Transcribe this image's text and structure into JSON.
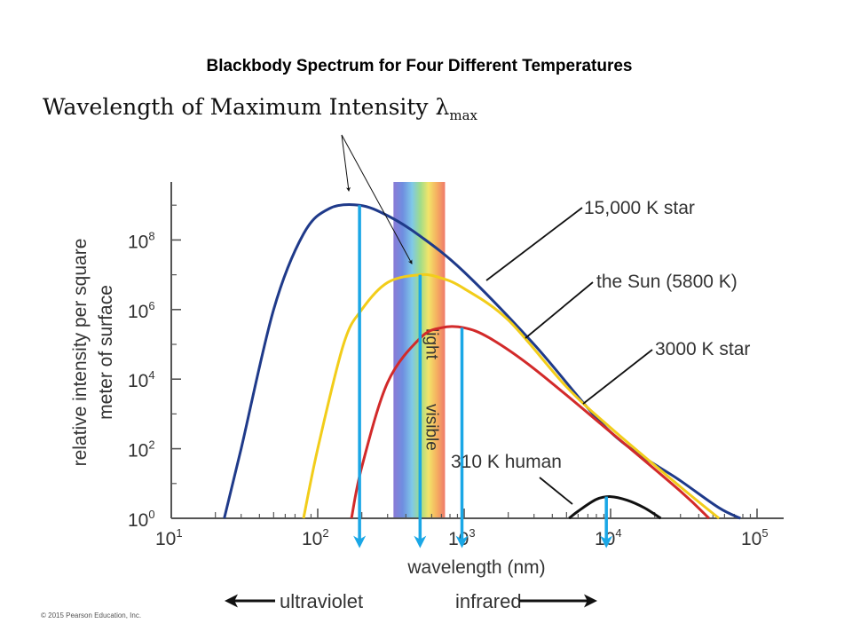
{
  "title": "Blackbody Spectrum for Four Different Temperatures",
  "annotation_heading": "Wavelength of Maximum Intensity λ",
  "annotation_subscript": "max",
  "copyright": "© 2015 Pearson Education, Inc.",
  "band_labels": {
    "ultraviolet": "ultraviolet",
    "infrared": "infrared",
    "visible": "visible",
    "light": "light"
  },
  "colors": {
    "star15000": "#1f3a8a",
    "sun": "#f2cd1a",
    "star3000": "#d22a2a",
    "human": "#111111",
    "arrow": "#1aa7e6",
    "axis": "#555555"
  },
  "chart_data": {
    "type": "line",
    "xscale": "log",
    "yscale": "log",
    "xlabel": "wavelength (nm)",
    "ylabel": "relative intensity per square meter of surface",
    "xlim": [
      10,
      100000
    ],
    "ylim": [
      1,
      10000000000
    ],
    "xticks": [
      {
        "value": 10,
        "base": "10",
        "exp": "1"
      },
      {
        "value": 100,
        "base": "10",
        "exp": "2"
      },
      {
        "value": 1000,
        "base": "10",
        "exp": "3"
      },
      {
        "value": 10000,
        "base": "10",
        "exp": "4"
      },
      {
        "value": 100000,
        "base": "10",
        "exp": "5"
      }
    ],
    "yticks": [
      {
        "value": 1,
        "base": "10",
        "exp": "0"
      },
      {
        "value": 100,
        "base": "10",
        "exp": "2"
      },
      {
        "value": 10000,
        "base": "10",
        "exp": "4"
      },
      {
        "value": 1000000,
        "base": "10",
        "exp": "6"
      },
      {
        "value": 100000000,
        "base": "10",
        "exp": "8"
      }
    ],
    "visible_band": [
      400,
      700
    ],
    "series": [
      {
        "name": "15,000 K star",
        "color": "#1f3a8a",
        "x": [
          23,
          30,
          50,
          80,
          120,
          193,
          300,
          500,
          1000,
          3000,
          10000,
          30000,
          55000,
          77000
        ],
        "y": [
          1,
          100,
          1000000,
          150000000,
          800000000,
          1000000000,
          500000000,
          130000000,
          12000000,
          100000,
          300,
          12,
          2,
          1
        ]
      },
      {
        "name": "the Sun (5800 K)",
        "color": "#f2cd1a",
        "x": [
          80,
          100,
          150,
          200,
          300,
          500,
          700,
          1000,
          2000,
          5000,
          10000,
          30000,
          55000
        ],
        "y": [
          1,
          100,
          100000,
          1000000,
          6000000,
          10000000,
          8000000,
          4000000,
          500000,
          6000,
          400,
          8,
          1
        ]
      },
      {
        "name": "3000 K star",
        "color": "#d22a2a",
        "x": [
          170,
          200,
          300,
          500,
          700,
          1000,
          1500,
          3000,
          10000,
          30000,
          47000
        ],
        "y": [
          1,
          30,
          8000,
          150000,
          300000,
          300000,
          150000,
          20000,
          300,
          6,
          1
        ]
      },
      {
        "name": "310 K human",
        "color": "#111111",
        "x": [
          5200,
          6000,
          8000,
          10000,
          13000,
          17000,
          22000
        ],
        "y": [
          1,
          1.6,
          3.5,
          4.2,
          3.3,
          2,
          1
        ]
      }
    ],
    "peak_arrows": [
      {
        "series": "15,000 K star",
        "x": 193,
        "y": 1000000000
      },
      {
        "series": "the Sun (5800 K)",
        "x": 500,
        "y": 10000000
      },
      {
        "series": "3000 K star",
        "x": 966,
        "y": 300000
      },
      {
        "series": "310 K human",
        "x": 9350,
        "y": 4.2
      }
    ]
  }
}
